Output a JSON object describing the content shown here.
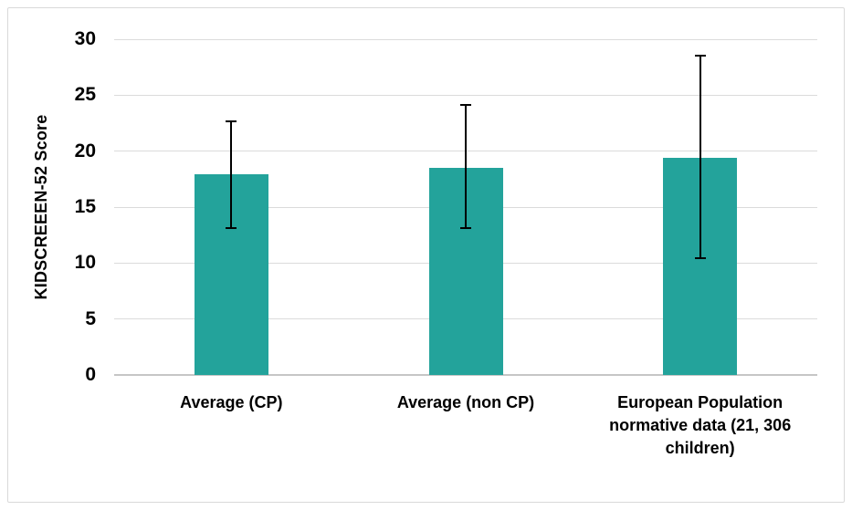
{
  "figure": {
    "background": "#FFFFFF",
    "border_color": "#D9D9D9"
  },
  "chart_data": {
    "type": "bar",
    "title": "",
    "xlabel": "",
    "ylabel": "KIDSCREEEN-52 Score",
    "categories": [
      "Average (CP)",
      "Average (non CP)",
      "European Population normative data (21, 306 children)"
    ],
    "values": [
      17.9,
      18.5,
      19.4
    ],
    "error_bars": {
      "low": [
        13.1,
        13.1,
        10.4
      ],
      "high": [
        22.7,
        24.1,
        28.5
      ]
    },
    "ylim": [
      0,
      30
    ],
    "yticks": [
      0,
      5,
      10,
      15,
      20,
      25,
      30
    ],
    "grid": true,
    "legend_position": "none",
    "bar_color": "#23A39B",
    "error_color": "#000000",
    "gridline_color": "#DBDBDB",
    "axis_line_color": "#C6C6C6",
    "text_color": "#000000"
  }
}
